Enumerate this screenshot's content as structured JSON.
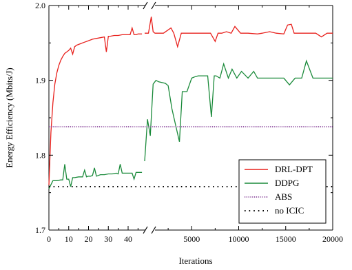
{
  "chart_data": {
    "type": "line",
    "ylabel": "Energy Efficiency (Mbits/J)",
    "xlabel": "Iterations",
    "ylim": [
      1.7,
      2.0
    ],
    "y_ticks": [
      "1.7",
      "1.8",
      "1.9",
      "2.0"
    ],
    "y_tick_values": [
      1.7,
      1.8,
      1.9,
      2.0
    ],
    "axis_break": "//",
    "segments": [
      {
        "xlim": [
          0,
          48
        ],
        "x_tick_values": [
          0,
          10,
          20,
          30,
          40
        ],
        "x_ticks": [
          "0",
          "10",
          "20",
          "30",
          "40"
        ],
        "minor_step": 5
      },
      {
        "xlim": [
          0,
          20000
        ],
        "x_tick_values": [
          5000,
          10000,
          15000,
          20000
        ],
        "x_ticks": [
          "5000",
          "10000",
          "15000",
          "20000"
        ],
        "minor_step": 2500
      }
    ],
    "legend_position": "bottom-right",
    "grid": false,
    "series": [
      {
        "name": "DRL-DPT",
        "color": "#e8201c",
        "dash": "solid",
        "segments": [
          {
            "x": [
              0,
              1,
              2,
              3,
              4,
              5,
              6,
              7,
              8,
              9,
              10,
              11,
              12,
              13,
              14,
              16,
              18,
              20,
              22,
              24,
              26,
              28,
              29,
              30,
              31,
              33,
              35,
              37,
              39,
              41,
              42,
              43,
              44,
              45,
              46,
              47
            ],
            "y": [
              1.76,
              1.83,
              1.87,
              1.895,
              1.91,
              1.92,
              1.927,
              1.932,
              1.936,
              1.938,
              1.94,
              1.943,
              1.935,
              1.945,
              1.947,
              1.949,
              1.951,
              1.953,
              1.955,
              1.956,
              1.957,
              1.958,
              1.938,
              1.959,
              1.959,
              1.96,
              1.96,
              1.961,
              1.961,
              1.961,
              1.97,
              1.961,
              1.961,
              1.962,
              1.962,
              1.962
            ]
          },
          {
            "x": [
              0,
              400,
              700,
              900,
              1100,
              1300,
              2000,
              2800,
              3100,
              3500,
              3900,
              4200,
              4800,
              5500,
              6300,
              7000,
              7500,
              7800,
              8200,
              8700,
              9200,
              9600,
              10200,
              10500,
              11000,
              12000,
              12500,
              13300,
              14000,
              14800,
              15200,
              15600,
              15900,
              16400,
              17200,
              18200,
              18800,
              19400,
              20000
            ],
            "y": [
              1.963,
              1.963,
              1.985,
              1.965,
              1.963,
              1.963,
              1.963,
              1.97,
              1.963,
              1.945,
              1.963,
              1.963,
              1.963,
              1.963,
              1.963,
              1.963,
              1.952,
              1.963,
              1.963,
              1.965,
              1.963,
              1.972,
              1.963,
              1.963,
              1.963,
              1.962,
              1.963,
              1.965,
              1.963,
              1.962,
              1.974,
              1.975,
              1.963,
              1.963,
              1.963,
              1.963,
              1.958,
              1.963,
              1.963
            ]
          }
        ]
      },
      {
        "name": "DDPG",
        "color": "#1a8a3a",
        "dash": "solid",
        "segments": [
          {
            "x": [
              0,
              2,
              4,
              6,
              7,
              8,
              9,
              10,
              11,
              12,
              13,
              15,
              17,
              18,
              19,
              20,
              21,
              22,
              23,
              24,
              25,
              26,
              28,
              30,
              32,
              34,
              35,
              36,
              37,
              38,
              39,
              40,
              42,
              43,
              44,
              45,
              46,
              47
            ],
            "y": [
              1.755,
              1.766,
              1.766,
              1.767,
              1.767,
              1.788,
              1.768,
              1.768,
              1.758,
              1.77,
              1.77,
              1.771,
              1.771,
              1.78,
              1.771,
              1.772,
              1.772,
              1.773,
              1.783,
              1.772,
              1.773,
              1.774,
              1.774,
              1.775,
              1.775,
              1.776,
              1.775,
              1.788,
              1.776,
              1.776,
              1.776,
              1.776,
              1.776,
              1.768,
              1.777,
              1.777,
              1.777,
              1.777
            ]
          },
          {
            "x": [
              0,
              300,
              600,
              900,
              1200,
              1500,
              2200,
              2500,
              2900,
              3300,
              3700,
              4000,
              4200,
              4500,
              5000,
              5400,
              5700,
              6000,
              6300,
              6700,
              7100,
              7400,
              7600,
              8000,
              8400,
              8900,
              9300,
              9800,
              10300,
              11000,
              11600,
              12000,
              12600,
              13400,
              14000,
              14800,
              15400,
              16000,
              16700,
              17200,
              17900,
              18400,
              19000,
              20000
            ],
            "y": [
              1.792,
              1.848,
              1.826,
              1.895,
              1.9,
              1.898,
              1.896,
              1.893,
              1.862,
              1.84,
              1.818,
              1.885,
              1.885,
              1.885,
              1.903,
              1.905,
              1.906,
              1.906,
              1.906,
              1.906,
              1.851,
              1.906,
              1.906,
              1.903,
              1.922,
              1.903,
              1.915,
              1.903,
              1.912,
              1.903,
              1.912,
              1.903,
              1.903,
              1.903,
              1.903,
              1.903,
              1.894,
              1.903,
              1.903,
              1.926,
              1.903,
              1.903,
              1.903,
              1.903
            ]
          }
        ]
      },
      {
        "name": "ABS",
        "color": "#7a2e8e",
        "dash": "dotted",
        "segments": [
          {
            "x": [
              0,
              48
            ],
            "y": [
              1.838,
              1.838
            ]
          },
          {
            "x": [
              0,
              20000
            ],
            "y": [
              1.838,
              1.838
            ]
          }
        ]
      },
      {
        "name": "no ICIC",
        "color": "#000000",
        "dash": "dotted",
        "segments": [
          {
            "x": [
              0,
              48
            ],
            "y": [
              1.758,
              1.758
            ]
          },
          {
            "x": [
              0,
              20000
            ],
            "y": [
              1.758,
              1.758
            ]
          }
        ]
      }
    ]
  }
}
